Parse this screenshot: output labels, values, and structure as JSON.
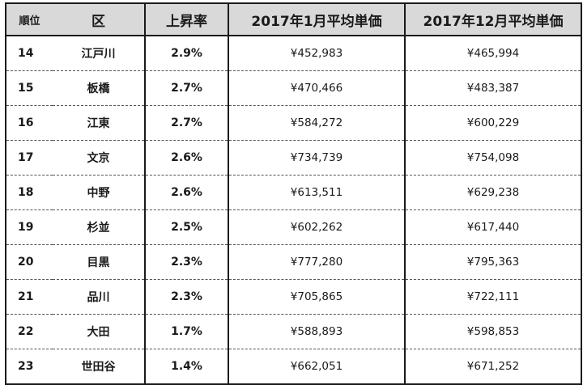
{
  "table": {
    "headers": [
      "順位",
      "区",
      "上昇率",
      "2017年1月平均単価",
      "2017年12月平均単価"
    ],
    "rows": [
      {
        "rank": "14",
        "ward": "江戸川",
        "rate": "2.9%",
        "jan": "¥452,983",
        "dec": "¥465,994"
      },
      {
        "rank": "15",
        "ward": "板橋",
        "rate": "2.7%",
        "jan": "¥470,466",
        "dec": "¥483,387"
      },
      {
        "rank": "16",
        "ward": "江東",
        "rate": "2.7%",
        "jan": "¥584,272",
        "dec": "¥600,229"
      },
      {
        "rank": "17",
        "ward": "文京",
        "rate": "2.6%",
        "jan": "¥734,739",
        "dec": "¥754,098"
      },
      {
        "rank": "18",
        "ward": "中野",
        "rate": "2.6%",
        "jan": "¥613,511",
        "dec": "¥629,238"
      },
      {
        "rank": "19",
        "ward": "杉並",
        "rate": "2.5%",
        "jan": "¥602,262",
        "dec": "¥617,440"
      },
      {
        "rank": "20",
        "ward": "目黒",
        "rate": "2.3%",
        "jan": "¥777,280",
        "dec": "¥795,363"
      },
      {
        "rank": "21",
        "ward": "品川",
        "rate": "2.3%",
        "jan": "¥705,865",
        "dec": "¥722,111"
      },
      {
        "rank": "22",
        "ward": "大田",
        "rate": "1.7%",
        "jan": "¥588,893",
        "dec": "¥598,853"
      },
      {
        "rank": "23",
        "ward": "世田谷",
        "rate": "1.4%",
        "jan": "¥662,051",
        "dec": "¥671,252"
      }
    ]
  }
}
